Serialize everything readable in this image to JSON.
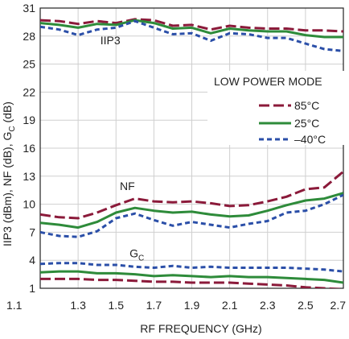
{
  "chart_data": {
    "type": "line",
    "title": "",
    "xlabel": "RF FREQUENCY (GHz)",
    "ylabel": "IIP3 (dBm), NF (dB), G",
    "ylabel_sub": "C",
    "ylabel_tail": " (dB)",
    "xlim": [
      1.1,
      2.7
    ],
    "ylim": [
      1,
      31
    ],
    "x_ticks": [
      1.1,
      1.3,
      1.5,
      1.7,
      1.9,
      2.1,
      2.3,
      2.5,
      2.7
    ],
    "x_tick_labels": [
      "1.1",
      "1.3",
      "1.5",
      "1.7",
      "1.9",
      "2.1",
      "2.3",
      "2.5",
      "2.7"
    ],
    "y_ticks": [
      1,
      4,
      7,
      10,
      13,
      16,
      19,
      22,
      25,
      28,
      31
    ],
    "y_tick_labels": [
      "1",
      "4",
      "7",
      "10",
      "13",
      "16",
      "19",
      "22",
      "25",
      "28",
      "31"
    ],
    "grid": true,
    "legend": {
      "title": "LOW POWER MODE",
      "placement": "right",
      "entries": [
        "85°C",
        "25°C",
        "–40°C"
      ]
    },
    "annotations": [
      {
        "text": "IIP3",
        "x": 1.47,
        "y": 27.1
      },
      {
        "text": "NF",
        "x": 1.56,
        "y": 11.5
      },
      {
        "text": "G",
        "sub": "C",
        "x": 1.61,
        "y": 4.3
      }
    ],
    "series": [
      {
        "group": "IIP3",
        "temp": "85°C",
        "color": "#8b1a3a",
        "dash": "dash",
        "x": [
          1.1,
          1.2,
          1.3,
          1.4,
          1.5,
          1.6,
          1.7,
          1.8,
          1.9,
          2.0,
          2.1,
          2.2,
          2.3,
          2.4,
          2.5,
          2.6,
          2.7
        ],
        "y": [
          29.7,
          29.6,
          29.3,
          29.6,
          29.4,
          29.8,
          29.7,
          29.1,
          29.2,
          28.7,
          29.1,
          28.9,
          28.8,
          28.8,
          28.6,
          28.6,
          28.5
        ]
      },
      {
        "group": "IIP3",
        "temp": "25°C",
        "color": "#2e8b3a",
        "dash": "solid",
        "x": [
          1.1,
          1.2,
          1.3,
          1.4,
          1.5,
          1.6,
          1.7,
          1.8,
          1.9,
          2.0,
          2.1,
          2.2,
          2.3,
          2.4,
          2.5,
          2.6,
          2.7
        ],
        "y": [
          29.4,
          29.2,
          28.9,
          29.3,
          29.2,
          29.7,
          29.4,
          28.8,
          28.9,
          28.3,
          28.8,
          28.6,
          28.5,
          28.5,
          28.1,
          27.9,
          27.9
        ]
      },
      {
        "group": "IIP3",
        "temp": "–40°C",
        "color": "#2b4fa8",
        "dash": "dash",
        "x": [
          1.1,
          1.2,
          1.3,
          1.4,
          1.5,
          1.6,
          1.7,
          1.8,
          1.9,
          2.0,
          2.1,
          2.2,
          2.3,
          2.4,
          2.5,
          2.6,
          2.7
        ],
        "y": [
          29.0,
          28.7,
          28.1,
          28.7,
          28.9,
          29.6,
          28.9,
          28.2,
          28.3,
          27.5,
          28.3,
          28.2,
          27.8,
          27.8,
          27.2,
          26.6,
          26.4
        ]
      },
      {
        "group": "NF",
        "temp": "85°C",
        "color": "#8b1a3a",
        "dash": "dash",
        "x": [
          1.1,
          1.2,
          1.3,
          1.4,
          1.5,
          1.6,
          1.7,
          1.8,
          1.9,
          2.0,
          2.1,
          2.2,
          2.3,
          2.4,
          2.5,
          2.6,
          2.7
        ],
        "y": [
          8.9,
          8.6,
          8.5,
          9.1,
          9.9,
          10.6,
          10.3,
          10.2,
          10.3,
          10.1,
          9.8,
          9.9,
          10.3,
          10.8,
          11.6,
          11.8,
          13.5
        ]
      },
      {
        "group": "NF",
        "temp": "25°C",
        "color": "#2e8b3a",
        "dash": "solid",
        "x": [
          1.1,
          1.2,
          1.3,
          1.4,
          1.5,
          1.6,
          1.7,
          1.8,
          1.9,
          2.0,
          2.1,
          2.2,
          2.3,
          2.4,
          2.5,
          2.6,
          2.7
        ],
        "y": [
          8.0,
          7.8,
          7.5,
          8.1,
          9.1,
          9.6,
          9.3,
          9.1,
          9.2,
          8.9,
          8.7,
          8.8,
          9.3,
          9.9,
          10.4,
          10.6,
          11.2
        ]
      },
      {
        "group": "NF",
        "temp": "–40°C",
        "color": "#2b4fa8",
        "dash": "dash",
        "x": [
          1.1,
          1.2,
          1.3,
          1.4,
          1.5,
          1.6,
          1.7,
          1.8,
          1.9,
          2.0,
          2.1,
          2.2,
          2.3,
          2.4,
          2.5,
          2.6,
          2.7
        ],
        "y": [
          7.0,
          6.6,
          6.5,
          7.1,
          8.5,
          9.0,
          8.3,
          7.7,
          8.1,
          7.8,
          7.5,
          7.9,
          8.2,
          9.1,
          9.3,
          10.0,
          11.0
        ]
      },
      {
        "group": "GC",
        "temp": "85°C",
        "color": "#8b1a3a",
        "dash": "dash",
        "x": [
          1.1,
          1.2,
          1.3,
          1.4,
          1.5,
          1.6,
          1.7,
          1.8,
          1.9,
          2.0,
          2.1,
          2.2,
          2.3,
          2.4,
          2.5,
          2.6,
          2.7
        ],
        "y": [
          2.0,
          2.0,
          2.0,
          1.9,
          1.9,
          1.8,
          1.7,
          1.7,
          1.6,
          1.6,
          1.6,
          1.5,
          1.4,
          1.3,
          1.1,
          1.0,
          0.9
        ]
      },
      {
        "group": "GC",
        "temp": "25°C",
        "color": "#2e8b3a",
        "dash": "solid",
        "x": [
          1.1,
          1.2,
          1.3,
          1.4,
          1.5,
          1.6,
          1.7,
          1.8,
          1.9,
          2.0,
          2.1,
          2.2,
          2.3,
          2.4,
          2.5,
          2.6,
          2.7
        ],
        "y": [
          2.7,
          2.8,
          2.8,
          2.6,
          2.6,
          2.5,
          2.3,
          2.4,
          2.3,
          2.2,
          2.3,
          2.2,
          2.2,
          2.1,
          2.0,
          1.9,
          1.6
        ]
      },
      {
        "group": "GC",
        "temp": "–40°C",
        "color": "#2b4fa8",
        "dash": "dash",
        "x": [
          1.1,
          1.2,
          1.3,
          1.4,
          1.5,
          1.6,
          1.7,
          1.8,
          1.9,
          2.0,
          2.1,
          2.2,
          2.3,
          2.4,
          2.5,
          2.6,
          2.7
        ],
        "y": [
          3.6,
          3.7,
          3.7,
          3.5,
          3.5,
          3.3,
          3.2,
          3.4,
          3.2,
          3.3,
          3.2,
          3.2,
          3.2,
          3.2,
          3.1,
          3.0,
          2.8
        ]
      }
    ]
  }
}
